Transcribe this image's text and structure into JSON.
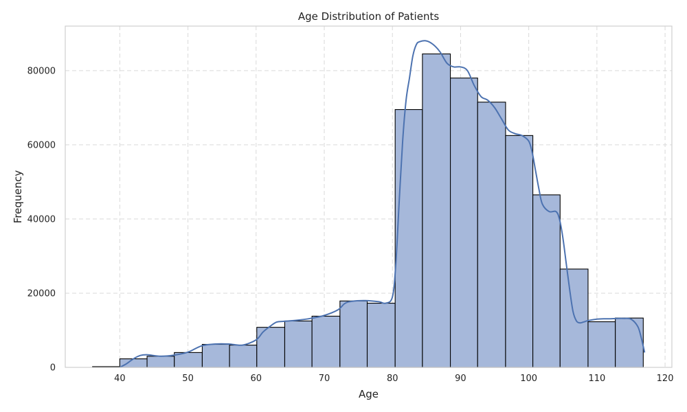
{
  "chart_data": {
    "type": "bar",
    "title": "Age Distribution of Patients",
    "xlabel": "Age",
    "ylabel": "Frequency",
    "xlim": [
      32,
      121
    ],
    "ylim": [
      0,
      92000
    ],
    "xticks": [
      40,
      50,
      60,
      70,
      80,
      90,
      100,
      110,
      120
    ],
    "yticks": [
      0,
      20000,
      40000,
      60000,
      80000
    ],
    "grid": true,
    "colors": {
      "bar_fill": "#a6b8da",
      "bar_edge": "#000000",
      "kde_line": "#4c72b0",
      "grid": "#d9d9d9",
      "frame": "#cfcfcf"
    },
    "bins": [
      {
        "x0": 36.0,
        "x1": 40.0,
        "value": 200
      },
      {
        "x0": 40.0,
        "x1": 44.0,
        "value": 2300
      },
      {
        "x0": 44.0,
        "x1": 48.0,
        "value": 3000
      },
      {
        "x0": 48.0,
        "x1": 52.1,
        "value": 4000
      },
      {
        "x0": 52.1,
        "x1": 56.1,
        "value": 6200
      },
      {
        "x0": 56.1,
        "x1": 60.1,
        "value": 6000
      },
      {
        "x0": 60.1,
        "x1": 64.2,
        "value": 10800
      },
      {
        "x0": 64.2,
        "x1": 68.2,
        "value": 12500
      },
      {
        "x0": 68.2,
        "x1": 72.3,
        "value": 13800
      },
      {
        "x0": 72.3,
        "x1": 76.3,
        "value": 17900
      },
      {
        "x0": 76.3,
        "x1": 80.4,
        "value": 17300
      },
      {
        "x0": 80.4,
        "x1": 84.4,
        "value": 69500
      },
      {
        "x0": 84.4,
        "x1": 88.5,
        "value": 84500
      },
      {
        "x0": 88.5,
        "x1": 92.5,
        "value": 78000
      },
      {
        "x0": 92.5,
        "x1": 96.6,
        "value": 71500
      },
      {
        "x0": 96.6,
        "x1": 100.6,
        "value": 62500
      },
      {
        "x0": 100.6,
        "x1": 104.6,
        "value": 46500
      },
      {
        "x0": 104.6,
        "x1": 108.7,
        "value": 26500
      },
      {
        "x0": 108.7,
        "x1": 112.7,
        "value": 12300
      },
      {
        "x0": 112.7,
        "x1": 116.8,
        "value": 13300
      }
    ],
    "kde": {
      "x": [
        40,
        41,
        42,
        43,
        44,
        46,
        48,
        50,
        52,
        54,
        56,
        58,
        60,
        61,
        62,
        63,
        64,
        66,
        68,
        70,
        72,
        73,
        74,
        76,
        78,
        79,
        80,
        80.5,
        81,
        81.5,
        82,
        82.5,
        83,
        83.5,
        84,
        85,
        86,
        87,
        88,
        89,
        90,
        91,
        92,
        93,
        94,
        95,
        96,
        97,
        98,
        99,
        100,
        100.5,
        101,
        101.5,
        102,
        103,
        104,
        104.5,
        105,
        105.5,
        106,
        106.5,
        107,
        107.5,
        108,
        108.5,
        109,
        110,
        111,
        112,
        113,
        114,
        115,
        116,
        116.5,
        117
      ],
      "y": [
        0,
        1000,
        2300,
        3200,
        3400,
        3000,
        3300,
        4100,
        5800,
        6300,
        6300,
        6000,
        7400,
        9500,
        11000,
        12200,
        12400,
        12700,
        13200,
        14000,
        15500,
        17200,
        17800,
        18000,
        17700,
        17300,
        19000,
        28000,
        45000,
        61000,
        72000,
        78000,
        84000,
        87000,
        87800,
        88000,
        87000,
        85000,
        82000,
        81000,
        81000,
        80000,
        76000,
        73000,
        72000,
        70000,
        67000,
        64000,
        63000,
        62500,
        61000,
        58000,
        53000,
        48000,
        44000,
        42000,
        42000,
        40000,
        35000,
        28000,
        21000,
        15000,
        12500,
        12000,
        12200,
        12500,
        12700,
        13000,
        13100,
        13100,
        13200,
        13200,
        13000,
        11000,
        8000,
        4000
      ]
    }
  }
}
